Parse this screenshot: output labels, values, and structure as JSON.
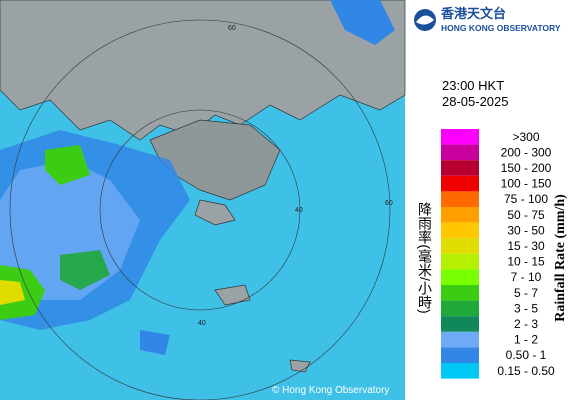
{
  "header": {
    "org_chinese": "香港天文台",
    "org_english": "HONG KONG OBSERVATORY"
  },
  "timestamp": {
    "time": "23:00 HKT",
    "date": "28-05-2025"
  },
  "legend": {
    "title_chinese": "降雨率(毫米/小時)",
    "title_english": "Rainfall Rate (mm/h)",
    "items": [
      {
        "label": ">300",
        "color": "#ff00ff"
      },
      {
        "label": "200 - 300",
        "color": "#c8009c"
      },
      {
        "label": "150 - 200",
        "color": "#b80030"
      },
      {
        "label": "100 - 150",
        "color": "#f00000"
      },
      {
        "label": "75 - 100",
        "color": "#ff6a00"
      },
      {
        "label": "50 - 75",
        "color": "#ffa000"
      },
      {
        "label": "30 - 50",
        "color": "#ffc800"
      },
      {
        "label": "15 - 30",
        "color": "#e0dc00"
      },
      {
        "label": "10 - 15",
        "color": "#b4f000"
      },
      {
        "label": "7 - 10",
        "color": "#78ff00"
      },
      {
        "label": "5 - 7",
        "color": "#3ccc14"
      },
      {
        "label": "3 - 5",
        "color": "#1ea838"
      },
      {
        "label": "2 - 3",
        "color": "#10885a"
      },
      {
        "label": "1 - 2",
        "color": "#6eaaf5"
      },
      {
        "label": "0.50 - 1",
        "color": "#3287e6"
      },
      {
        "label": "0.15 - 0.50",
        "color": "#00c8f5"
      }
    ]
  },
  "map": {
    "ring_labels": [
      "60",
      "40",
      "60",
      "40"
    ],
    "copyright": "© Hong Kong Observatory"
  }
}
